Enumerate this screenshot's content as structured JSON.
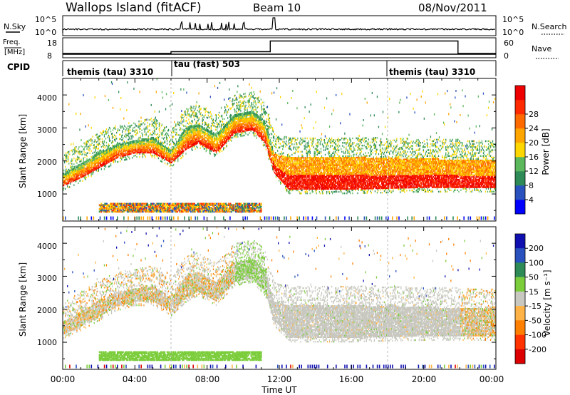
{
  "header": {
    "station": "Wallops Island (fitACF)",
    "beam": "Beam 10",
    "date": "08/Nov/2011"
  },
  "top_panels": {
    "nsky_label": "N.Sky",
    "nsearch_label": "N.Search",
    "noise_ticks": [
      "10^5",
      "10^0"
    ],
    "freq_label_line1": "Freq.",
    "freq_label_line2": "[MHz]",
    "freq_ticks": [
      "18",
      "8"
    ],
    "nave_label": "Nave",
    "nave_ticks": [
      "60",
      "0"
    ],
    "cpid_label": "CPID",
    "cpid_segments": [
      {
        "label": "themis (tau) 3310",
        "start_hour": 0,
        "end_hour": 6
      },
      {
        "label": "tau (fast) 503",
        "start_hour": 6,
        "end_hour": 18
      },
      {
        "label": "themis (tau) 3310",
        "start_hour": 18,
        "end_hour": 24
      }
    ],
    "nave_steps": [
      {
        "start_hour": 0,
        "end_hour": 6,
        "level": 0.2
      },
      {
        "start_hour": 6,
        "end_hour": 11.5,
        "level": 0.3
      },
      {
        "start_hour": 11.5,
        "end_hour": 21.9,
        "level": 0.9
      },
      {
        "start_hour": 21.9,
        "end_hour": 24,
        "level": 0.2
      }
    ]
  },
  "axes": {
    "x_label": "Time UT",
    "x_ticks": [
      "00:00",
      "04:00",
      "08:00",
      "12:00",
      "16:00",
      "20:00",
      "00:00"
    ],
    "y_label": "Slant Range [km]",
    "y_ticks": [
      "1000",
      "2000",
      "3000",
      "4000"
    ]
  },
  "power_scale": {
    "label": "Power [dB]",
    "ticks": [
      "4",
      "8",
      "12",
      "16",
      "20",
      "24",
      "28"
    ],
    "colors": [
      "#0000ff",
      "#2a52be",
      "#2e8b57",
      "#5cb85c",
      "#ffd700",
      "#ffa500",
      "#ff6a00",
      "#ff2a00",
      "#ee0000"
    ]
  },
  "velocity_scale": {
    "label": "Velocity [m s⁻¹]",
    "ticks": [
      "200",
      "100",
      "50",
      "15",
      "-15",
      "-50",
      "-100",
      "-200"
    ],
    "colors": [
      "#1010b0",
      "#2a52be",
      "#2e8b57",
      "#7ccd3c",
      "#c8c8c0",
      "#ffb347",
      "#ff7f00",
      "#ff3300",
      "#dd0000"
    ]
  },
  "chart_data": {
    "type": "heatmap",
    "title": "Wallops Island (fitACF) Beam 10 08/Nov/2011",
    "xlabel": "Time UT",
    "ylabel": "Slant Range [km]",
    "xlim_hours": [
      0,
      24
    ],
    "ylim_km": [
      180,
      4500
    ],
    "panels": [
      "Power [dB]",
      "Velocity [m s⁻¹]"
    ],
    "main_echo_band_km": [
      {
        "hour": 0.0,
        "lower": 1200,
        "upper": 1600
      },
      {
        "hour": 1.0,
        "lower": 1450,
        "upper": 1900
      },
      {
        "hour": 2.0,
        "lower": 1750,
        "upper": 2250
      },
      {
        "hour": 3.0,
        "lower": 2050,
        "upper": 2500
      },
      {
        "hour": 4.0,
        "lower": 2200,
        "upper": 2600
      },
      {
        "hour": 5.0,
        "lower": 2200,
        "upper": 2700
      },
      {
        "hour": 6.0,
        "lower": 1900,
        "upper": 2300
      },
      {
        "hour": 6.8,
        "lower": 2300,
        "upper": 3000
      },
      {
        "hour": 7.5,
        "lower": 2500,
        "upper": 3100
      },
      {
        "hour": 8.5,
        "lower": 2200,
        "upper": 2800
      },
      {
        "hour": 9.5,
        "lower": 2800,
        "upper": 3400
      },
      {
        "hour": 10.5,
        "lower": 2900,
        "upper": 3500
      },
      {
        "hour": 11.2,
        "lower": 2500,
        "upper": 3200
      },
      {
        "hour": 11.7,
        "lower": 1600,
        "upper": 2200
      },
      {
        "hour": 12.5,
        "lower": 1100,
        "upper": 2100
      },
      {
        "hour": 16.0,
        "lower": 1100,
        "upper": 2100
      },
      {
        "hour": 20.0,
        "lower": 1150,
        "upper": 2050
      },
      {
        "hour": 24.0,
        "lower": 1150,
        "upper": 2000
      }
    ],
    "ground_scatter_band_km": {
      "start_hour": 2.0,
      "end_hour": 11.0,
      "lower": 450,
      "upper": 700
    }
  }
}
